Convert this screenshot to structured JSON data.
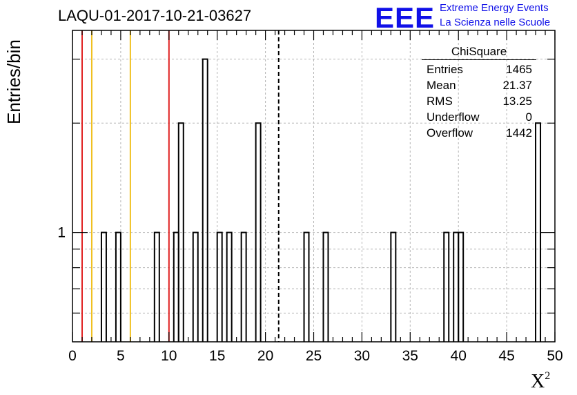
{
  "title": "LAQU-01-2017-10-21-03627",
  "logo": {
    "mark": "EEE",
    "line1": "Extreme Energy Events",
    "line2": "La Scienza nelle Scuole",
    "color": "#1010e8"
  },
  "stats": {
    "header": "ChiSquare",
    "rows": [
      {
        "label": "Entries",
        "value": "1465"
      },
      {
        "label": "Mean",
        "value": "21.37"
      },
      {
        "label": "RMS",
        "value": "13.25"
      },
      {
        "label": "Underflow",
        "value": "0"
      },
      {
        "label": "Overflow",
        "value": "1442"
      }
    ]
  },
  "chart_data": {
    "type": "bar",
    "histogram_style": "step",
    "title": "LAQU-01-2017-10-21-03627",
    "xlabel": "X",
    "xlabel_superscript": "2",
    "ylabel": "Entries/bin",
    "xlim": [
      0,
      50
    ],
    "ylim": [
      0.5,
      3.6
    ],
    "yscale": "log",
    "bin_width": 0.5,
    "x_ticks": [
      0,
      5,
      10,
      15,
      20,
      25,
      30,
      35,
      40,
      45,
      50
    ],
    "y_tick_labels": [
      {
        "value": 1,
        "label": "1"
      }
    ],
    "grid": true,
    "bins": [
      {
        "x": 3.0,
        "y": 1
      },
      {
        "x": 4.5,
        "y": 1
      },
      {
        "x": 8.5,
        "y": 1
      },
      {
        "x": 10.5,
        "y": 1
      },
      {
        "x": 11.0,
        "y": 2
      },
      {
        "x": 12.5,
        "y": 1
      },
      {
        "x": 13.5,
        "y": 3
      },
      {
        "x": 15.0,
        "y": 1
      },
      {
        "x": 16.0,
        "y": 1
      },
      {
        "x": 17.5,
        "y": 1
      },
      {
        "x": 19.0,
        "y": 2
      },
      {
        "x": 24.0,
        "y": 1
      },
      {
        "x": 26.0,
        "y": 1
      },
      {
        "x": 33.0,
        "y": 1
      },
      {
        "x": 38.5,
        "y": 1
      },
      {
        "x": 39.5,
        "y": 1
      },
      {
        "x": 40.0,
        "y": 1
      },
      {
        "x": 48.0,
        "y": 2
      }
    ],
    "reference_lines": [
      {
        "x": 1,
        "color": "#e02020",
        "style": "solid"
      },
      {
        "x": 2,
        "color": "#f0c020",
        "style": "solid"
      },
      {
        "x": 6,
        "color": "#f0c020",
        "style": "solid"
      },
      {
        "x": 10,
        "color": "#e02020",
        "style": "solid"
      },
      {
        "x": 21.37,
        "color": "#000000",
        "style": "dashed"
      }
    ],
    "colors": {
      "line": "#000000",
      "grid": "#b4b4b4"
    }
  }
}
